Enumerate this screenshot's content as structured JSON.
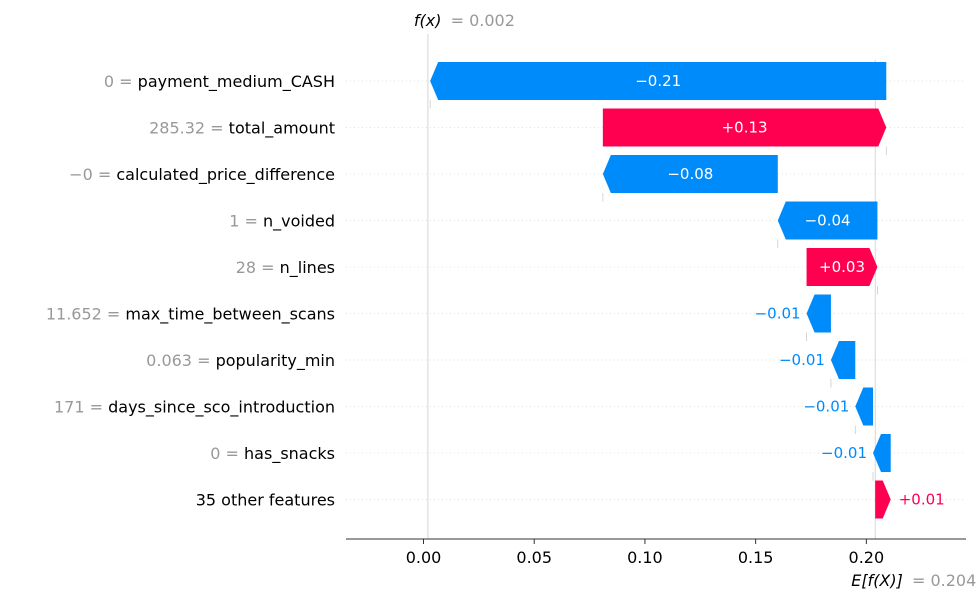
{
  "chart_data": {
    "type": "waterfall",
    "title": "",
    "xlim": [
      -0.035,
      0.245
    ],
    "xticks": [
      0.0,
      0.05,
      0.1,
      0.15,
      0.2
    ],
    "xtick_labels": [
      "0.00",
      "0.05",
      "0.10",
      "0.15",
      "0.20"
    ],
    "base_value": 0.204,
    "final_value": 0.002,
    "fx_label": "f(x)",
    "fx_value_text": "= 0.002",
    "ex_label": "E[f(X)]",
    "ex_value_text": "= 0.204",
    "features": [
      {
        "value": "0",
        "name": "payment_medium_CASH",
        "contribution": -0.206,
        "label": "−0.21"
      },
      {
        "value": "285.32",
        "name": "total_amount",
        "contribution": 0.128,
        "label": "+0.13"
      },
      {
        "value": "−0",
        "name": "calculated_price_difference",
        "contribution": -0.079,
        "label": "−0.08"
      },
      {
        "value": "1",
        "name": "n_voided",
        "contribution": -0.045,
        "label": "−0.04"
      },
      {
        "value": "28",
        "name": "n_lines",
        "contribution": 0.032,
        "label": "+0.03"
      },
      {
        "value": "11.652",
        "name": "max_time_between_scans",
        "contribution": -0.011,
        "label": "−0.01"
      },
      {
        "value": "0.063",
        "name": "popularity_min",
        "contribution": -0.011,
        "label": "−0.01"
      },
      {
        "value": "171",
        "name": "days_since_sco_introduction",
        "contribution": -0.008,
        "label": "−0.01"
      },
      {
        "value": "0",
        "name": "has_snacks",
        "contribution": -0.008,
        "label": "−0.01"
      },
      {
        "value": "",
        "name": "35 other features",
        "contribution": 0.007,
        "label": "+0.01"
      }
    ],
    "colors": {
      "positive": "#ff0051",
      "negative": "#008bfb",
      "gray": "#999999",
      "grid": "#cccccc"
    }
  }
}
